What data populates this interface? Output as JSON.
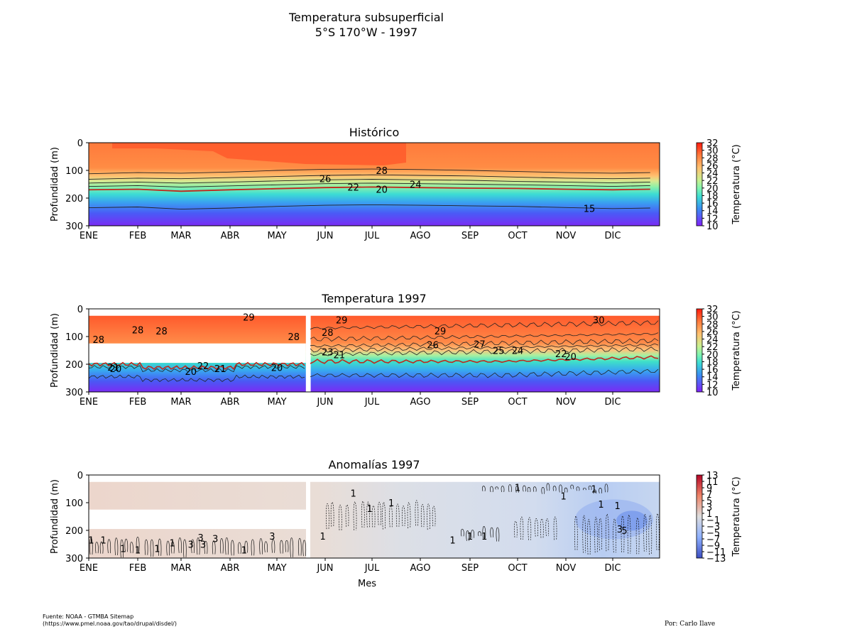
{
  "figure": {
    "title_line1": "Temperatura subsuperficial",
    "title_line2": "5°S 170°W - 1997",
    "source_line1": "Fuente: NOAA - GTMBA Sitemap",
    "source_line2": "(https://www.pmel.noaa.gov/tao/drupal/disdel/)",
    "author": "Por: Carlo Ilave"
  },
  "chart_data": [
    {
      "type": "heatmap",
      "title": "Histórico",
      "ylabel": "Profundidad (m)",
      "xlabel": "",
      "x_ticks": [
        "ENE",
        "FEB",
        "MAR",
        "ABR",
        "MAY",
        "JUN",
        "JUL",
        "AGO",
        "SEP",
        "OCT",
        "NOV",
        "DIC"
      ],
      "y_ticks": [
        "0",
        "100",
        "200",
        "300"
      ],
      "ylim": [
        300,
        0
      ],
      "colorbar": {
        "label": "Temperatura (°C)",
        "ticks": [
          "32",
          "30",
          "28",
          "26",
          "24",
          "22",
          "20",
          "18",
          "16",
          "14",
          "12",
          "10"
        ],
        "range": [
          10,
          32
        ],
        "colormap": "rainbow"
      },
      "contour_labels": [
        {
          "text": "26",
          "month": 5.0,
          "depth": 130
        },
        {
          "text": "28",
          "month": 6.2,
          "depth": 100
        },
        {
          "text": "22",
          "month": 5.6,
          "depth": 160
        },
        {
          "text": "20",
          "month": 6.2,
          "depth": 168
        },
        {
          "text": "24",
          "month": 6.9,
          "depth": 150
        },
        {
          "text": "15",
          "month": 10.5,
          "depth": 237
        }
      ],
      "isotherm_depths": {
        "months": [
          0,
          1,
          2,
          3,
          4,
          5,
          6,
          7,
          8,
          9,
          10,
          11,
          11.8
        ],
        "28": [
          112,
          108,
          110,
          106,
          100,
          96,
          95,
          97,
          100,
          104,
          108,
          110,
          108
        ],
        "26": [
          132,
          128,
          130,
          126,
          122,
          118,
          116,
          118,
          120,
          124,
          128,
          130,
          128
        ],
        "24": [
          146,
          142,
          146,
          142,
          138,
          134,
          132,
          134,
          136,
          140,
          142,
          145,
          142
        ],
        "22": [
          158,
          155,
          160,
          156,
          152,
          148,
          146,
          148,
          150,
          152,
          155,
          158,
          155
        ],
        "20": [
          170,
          168,
          175,
          170,
          166,
          162,
          160,
          162,
          164,
          165,
          168,
          170,
          168
        ],
        "15": [
          235,
          232,
          240,
          236,
          230,
          226,
          224,
          226,
          228,
          230,
          234,
          238,
          236
        ]
      },
      "series_colors": {
        "20": "#c0281c",
        "other": "#222222"
      }
    },
    {
      "type": "heatmap",
      "title": "Temperatura 1997",
      "ylabel": "Profundidad (m)",
      "xlabel": "",
      "x_ticks": [
        "ENE",
        "FEB",
        "MAR",
        "ABR",
        "MAY",
        "JUN",
        "JUL",
        "AGO",
        "SEP",
        "OCT",
        "NOV",
        "DIC"
      ],
      "y_ticks": [
        "0",
        "100",
        "200",
        "300"
      ],
      "ylim": [
        300,
        0
      ],
      "colorbar": {
        "label": "Temperatura (°C)",
        "ticks": [
          "32",
          "30",
          "28",
          "26",
          "24",
          "22",
          "20",
          "18",
          "16",
          "14",
          "12",
          "10"
        ],
        "range": [
          10,
          32
        ],
        "colormap": "rainbow"
      },
      "missing_data": [
        {
          "month_start": 0,
          "month_end": 4.6,
          "depth_start": 125,
          "depth_end": 195
        },
        {
          "month_start": 4.6,
          "month_end": 4.7,
          "depth_start": 0,
          "depth_end": 300
        }
      ],
      "contour_labels": [
        {
          "text": "28",
          "month": 0.2,
          "depth": 110
        },
        {
          "text": "28",
          "month": 1.0,
          "depth": 75
        },
        {
          "text": "28",
          "month": 1.55,
          "depth": 80
        },
        {
          "text": "29",
          "month": 3.4,
          "depth": 30
        },
        {
          "text": "28",
          "month": 4.35,
          "depth": 100
        },
        {
          "text": "21",
          "month": 0.5,
          "depth": 210
        },
        {
          "text": "20",
          "month": 0.55,
          "depth": 216
        },
        {
          "text": "20",
          "month": 2.2,
          "depth": 225
        },
        {
          "text": "22",
          "month": 2.45,
          "depth": 205
        },
        {
          "text": "21",
          "month": 2.8,
          "depth": 215
        },
        {
          "text": "20",
          "month": 4.0,
          "depth": 212
        },
        {
          "text": "28",
          "month": 5.05,
          "depth": 85
        },
        {
          "text": "29",
          "month": 5.35,
          "depth": 40
        },
        {
          "text": "23",
          "month": 5.05,
          "depth": 155
        },
        {
          "text": "21",
          "month": 5.3,
          "depth": 165
        },
        {
          "text": "29",
          "month": 7.4,
          "depth": 80
        },
        {
          "text": "26",
          "month": 7.25,
          "depth": 130
        },
        {
          "text": "27",
          "month": 8.2,
          "depth": 127
        },
        {
          "text": "25",
          "month": 8.6,
          "depth": 150
        },
        {
          "text": "24",
          "month": 9.0,
          "depth": 150
        },
        {
          "text": "22",
          "month": 9.9,
          "depth": 162
        },
        {
          "text": "20",
          "month": 10.1,
          "depth": 172
        },
        {
          "text": "30",
          "month": 10.7,
          "depth": 40
        }
      ]
    },
    {
      "type": "heatmap",
      "title": "Anomalías 1997",
      "ylabel": "Profundidad (m)",
      "xlabel": "Mes",
      "x_ticks": [
        "ENE",
        "FEB",
        "MAR",
        "ABR",
        "MAY",
        "JUN",
        "JUL",
        "AGO",
        "SEP",
        "OCT",
        "NOV",
        "DIC"
      ],
      "y_ticks": [
        "0",
        "100",
        "200",
        "300"
      ],
      "ylim": [
        300,
        0
      ],
      "colorbar": {
        "label": "Temperatura (°C)",
        "ticks": [
          "13",
          "11",
          "9",
          "7",
          "5",
          "3",
          "1",
          "−1",
          "−3",
          "−5",
          "−7",
          "−9",
          "−11",
          "−13"
        ],
        "range": [
          -13,
          13
        ],
        "colormap": "coolwarm"
      },
      "contour_labels": [
        {
          "text": "1",
          "month": 0.05,
          "depth": 235
        },
        {
          "text": "1",
          "month": 0.3,
          "depth": 235
        },
        {
          "text": "1",
          "month": 0.7,
          "depth": 265
        },
        {
          "text": "1",
          "month": 1.0,
          "depth": 270
        },
        {
          "text": "1",
          "month": 1.45,
          "depth": 265
        },
        {
          "text": "1",
          "month": 1.8,
          "depth": 245
        },
        {
          "text": "3",
          "month": 2.2,
          "depth": 250
        },
        {
          "text": "3",
          "month": 2.4,
          "depth": 225
        },
        {
          "text": "3",
          "month": 2.45,
          "depth": 250
        },
        {
          "text": "3",
          "month": 2.7,
          "depth": 230
        },
        {
          "text": "1",
          "month": 3.3,
          "depth": 270
        },
        {
          "text": "3",
          "month": 3.9,
          "depth": 220
        },
        {
          "text": "1",
          "month": 5.6,
          "depth": 65
        },
        {
          "text": "1",
          "month": 5.95,
          "depth": 120
        },
        {
          "text": "1",
          "month": 6.4,
          "depth": 100
        },
        {
          "text": "1",
          "month": 4.95,
          "depth": 220
        },
        {
          "text": "1",
          "month": 7.65,
          "depth": 235
        },
        {
          "text": "1",
          "month": 8.0,
          "depth": 220
        },
        {
          "text": "1",
          "month": 8.3,
          "depth": 220
        },
        {
          "text": "1",
          "month": 9.0,
          "depth": 45
        },
        {
          "text": "1",
          "month": 9.95,
          "depth": 75
        },
        {
          "text": "1",
          "month": 10.6,
          "depth": 50
        },
        {
          "text": "1",
          "month": 10.75,
          "depth": 105
        },
        {
          "text": "1",
          "month": 11.1,
          "depth": 110
        },
        {
          "text": "3",
          "month": 11.15,
          "depth": 195
        },
        {
          "text": "5",
          "month": 11.25,
          "depth": 200
        }
      ]
    }
  ]
}
